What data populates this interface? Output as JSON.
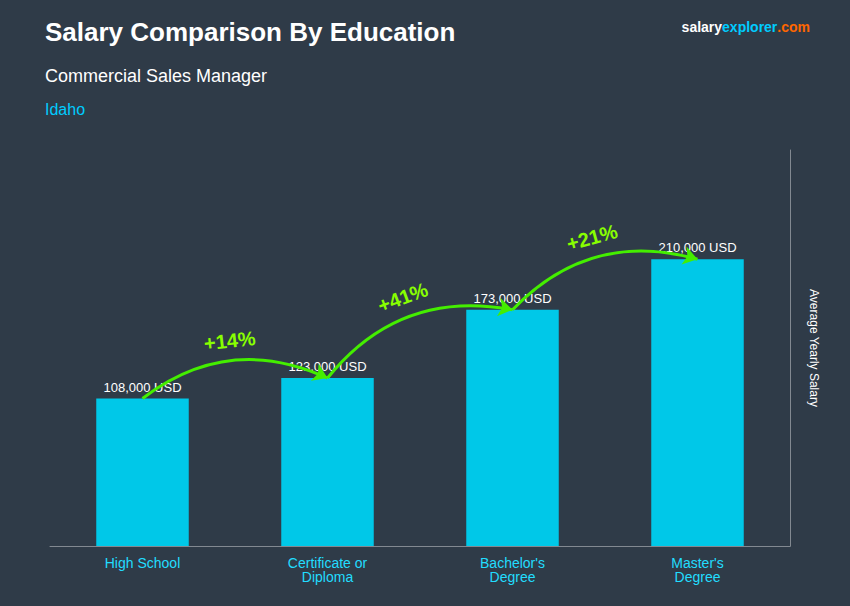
{
  "chart_data": {
    "type": "bar",
    "title": "Salary Comparison By Education",
    "subtitle": "Commercial Sales Manager",
    "location": "Idaho",
    "ylabel": "Average Yearly Salary",
    "watermark": [
      {
        "text": "salary",
        "color": "#ffffff"
      },
      {
        "text": "explorer",
        "color": "#00ccff"
      },
      {
        "text": ".com",
        "color": "#ff6600"
      }
    ],
    "categories": [
      "High School",
      "Certificate or\nDiploma",
      "Bachelor's\nDegree",
      "Master's\nDegree"
    ],
    "values": [
      108000,
      123000,
      173000,
      210000
    ],
    "value_labels": [
      "108,000 USD",
      "123,000 USD",
      "173,000 USD",
      "210,000 USD"
    ],
    "data_labels": true,
    "pct_changes": [
      "+14%",
      "+41%",
      "+21%"
    ],
    "color": "#00c8e8",
    "arrow_color": "#44ee00",
    "pct_color": "#88ff00",
    "category_color": "#22ddff",
    "location_color": "#00ccff",
    "text_color": "#ffffff",
    "background_color": "#2f3b48",
    "ylim": [
      0,
      290000
    ],
    "tick_labels": "x",
    "grid": false
  }
}
